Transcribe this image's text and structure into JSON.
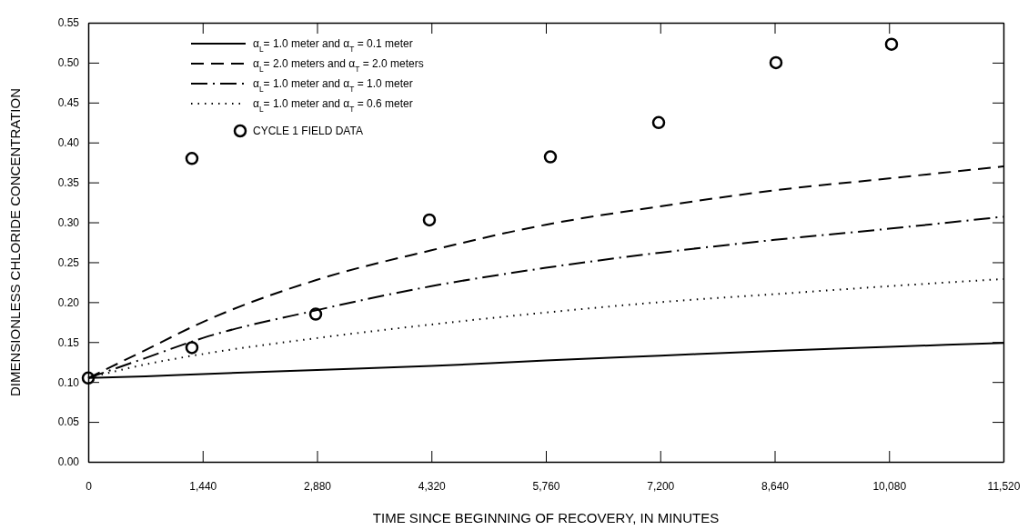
{
  "chart_data": {
    "type": "line",
    "xlabel": "TIME SINCE BEGINNING OF RECOVERY, IN MINUTES",
    "ylabel": "DIMENSIONLESS CHLORIDE CONCENTRATION",
    "xlim": [
      0,
      11520
    ],
    "xticks": [
      0,
      {
        "value": 1440,
        "label": "1,440"
      },
      {
        "value": 2880,
        "label": "2,880"
      },
      {
        "value": 4320,
        "label": "4,320"
      },
      {
        "value": 5760,
        "label": "5,760"
      },
      {
        "value": 7200,
        "label": "7,200"
      },
      {
        "value": 8640,
        "label": "8,640"
      },
      {
        "value": 10080,
        "label": "10,080"
      },
      {
        "value": 11520,
        "label": "11,520"
      }
    ],
    "ylim": [
      0,
      0.55
    ],
    "yticks": [
      {
        "value": 0,
        "label": "0.00"
      },
      {
        "value": 0.05,
        "label": "0.05"
      },
      {
        "value": 0.1,
        "label": "0.10"
      },
      {
        "value": 0.15,
        "label": "0.15"
      },
      {
        "value": 0.2,
        "label": "0.20"
      },
      {
        "value": 0.25,
        "label": "0.25"
      },
      {
        "value": 0.3,
        "label": "0.30"
      },
      {
        "value": 0.35,
        "label": "0.35"
      },
      {
        "value": 0.4,
        "label": "0.40"
      },
      {
        "value": 0.45,
        "label": "0.45"
      },
      {
        "value": 0.5,
        "label": "0.50"
      },
      {
        "value": 0.55,
        "label": "0.55"
      }
    ],
    "grid": false,
    "legend": "top left",
    "marker": "none",
    "x": [
      0,
      720,
      1440,
      2880,
      4320,
      5760,
      7200,
      8640,
      10080,
      11520
    ],
    "series": [
      {
        "name": "α$_{L}$= 1.0 meter and α$_{T}$ = 0.1 meter",
        "color": "#000000",
        "line_style": "solid",
        "values": [
          0.105,
          0.107,
          0.11,
          0.115,
          0.12,
          0.127,
          0.133,
          0.139,
          0.144,
          0.149
        ]
      },
      {
        "name": "α$_{L}$= 2.0 meters and α$_{T}$ = 2.0 meters",
        "color": "#000000",
        "line_style": "dashed",
        "values": [
          0.105,
          0.14,
          0.175,
          0.228,
          0.265,
          0.297,
          0.32,
          0.34,
          0.355,
          0.37
        ]
      },
      {
        "name": "α$_{L}$= 1.0 meter and α$_{T}$ = 1.0 meter",
        "color": "#000000",
        "line_style": "dashdot",
        "values": [
          0.105,
          0.13,
          0.155,
          0.19,
          0.22,
          0.243,
          0.262,
          0.278,
          0.292,
          0.307
        ]
      },
      {
        "name": "α$_{L}$= 1.0 meter and α$_{T}$ = 0.6 meter",
        "color": "#000000",
        "line_style": "dotted",
        "values": [
          0.105,
          0.122,
          0.135,
          0.155,
          0.172,
          0.187,
          0.2,
          0.21,
          0.22,
          0.229
        ]
      },
      {
        "name": "CYCLE 1 FIELD DATA",
        "type": "scatter",
        "marker": "circle",
        "color": "#000000",
        "x": [
          0,
          1305,
          1305,
          2863,
          4294,
          5817,
          7180,
          8657,
          10111
        ],
        "values": [
          0.105,
          0.38,
          0.143,
          0.185,
          0.303,
          0.382,
          0.425,
          0.5,
          0.523
        ]
      }
    ]
  }
}
